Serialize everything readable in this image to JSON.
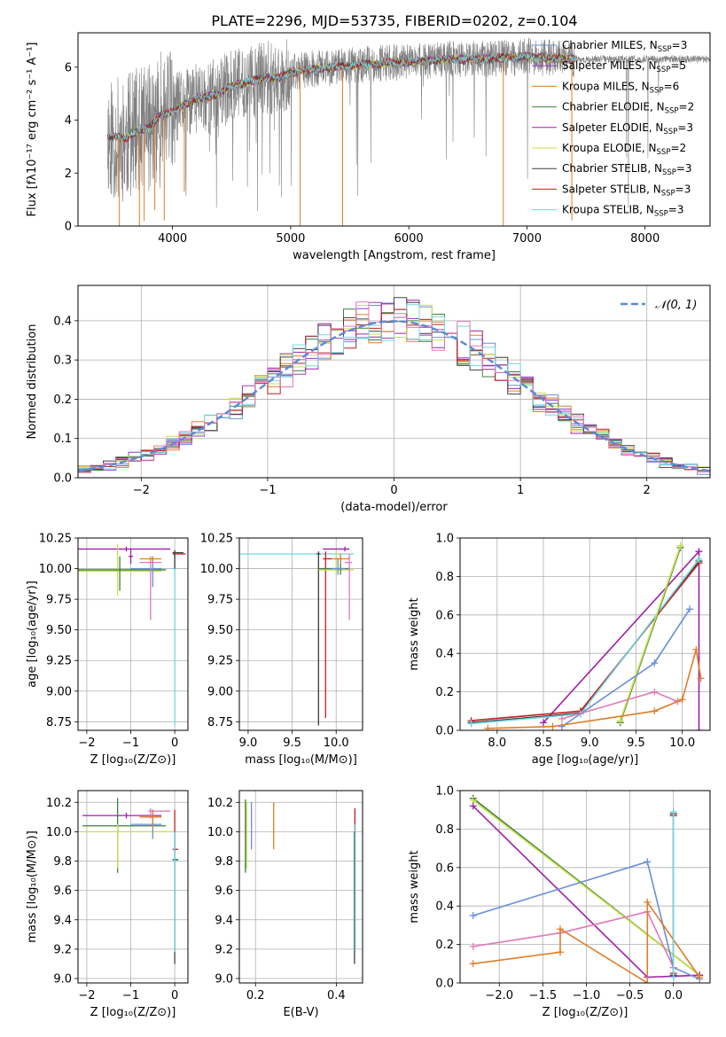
{
  "figure": {
    "title": "PLATE=2296, MJD=53735, FIBERID=0202, z=0.104"
  },
  "palette": {
    "Chabrier MILES": "#6a8ed8",
    "Salpeter MILES": "#9a3fc0",
    "Kroupa MILES": "#e07d2a",
    "Chabrier ELODIE": "#3f7f3f",
    "Salpeter ELODIE": "#a020a8",
    "Kroupa ELODIE": "#c8e04a",
    "Chabrier STELIB": "#404040",
    "Salpeter STELIB": "#c02020",
    "Kroupa STELIB": "#70d8e0",
    "pink": "#e07ab8",
    "observed": "#808080"
  },
  "chart_data": [
    {
      "id": "spectrum",
      "type": "line",
      "title": "PLATE=2296, MJD=53735, FIBERID=0202, z=0.104",
      "xlabel": "wavelength [Angstrom, rest frame]",
      "ylabel": "Flux [fλ10⁻¹⁷ erg cm⁻² s⁻¹ A⁻¹]",
      "xlim": [
        3200,
        8550
      ],
      "ylim": [
        0,
        7.3
      ],
      "xticks": [
        4000,
        5000,
        6000,
        7000,
        8000
      ],
      "yticks": [
        0,
        2,
        4,
        6
      ],
      "grid": false,
      "legend_position": "top-right",
      "legend": [
        {
          "label": "Chabrier MILES, N",
          "sub": "SSP",
          "tail": "=3",
          "series": "Chabrier MILES"
        },
        {
          "label": "Salpeter MILES, N",
          "sub": "SSP",
          "tail": "=5",
          "series": "Salpeter MILES"
        },
        {
          "label": "Kroupa MILES, N",
          "sub": "SSP",
          "tail": "=6",
          "series": "Kroupa MILES"
        },
        {
          "label": "Chabrier ELODIE, N",
          "sub": "SSP",
          "tail": "=2",
          "series": "Chabrier ELODIE"
        },
        {
          "label": "Salpeter ELODIE, N",
          "sub": "SSP",
          "tail": "=3",
          "series": "Salpeter ELODIE"
        },
        {
          "label": "Kroupa ELODIE, N",
          "sub": "SSP",
          "tail": "=2",
          "series": "Kroupa ELODIE"
        },
        {
          "label": "Chabrier STELIB, N",
          "sub": "SSP",
          "tail": "=3",
          "series": "Chabrier STELIB"
        },
        {
          "label": "Salpeter STELIB, N",
          "sub": "SSP",
          "tail": "=3",
          "series": "Salpeter STELIB"
        },
        {
          "label": "Kroupa STELIB, N",
          "sub": "SSP",
          "tail": "=3",
          "series": "Kroupa STELIB"
        }
      ],
      "observed_envelope": {
        "wavelength": [
          3450,
          3600,
          3700,
          3800,
          3900,
          4000,
          4100,
          4200,
          4300,
          4400,
          4500,
          4600,
          4700,
          4800,
          4900,
          5000,
          5200,
          5400,
          5600,
          5800,
          6000,
          6200,
          6400,
          6600,
          6800,
          7000,
          7200,
          7400
        ],
        "flux": [
          3.4,
          3.3,
          3.6,
          3.7,
          4.2,
          4.3,
          4.6,
          4.8,
          4.9,
          5.0,
          5.3,
          5.4,
          5.5,
          5.6,
          5.6,
          5.8,
          5.95,
          6.0,
          6.1,
          6.15,
          6.2,
          6.25,
          6.3,
          6.3,
          6.35,
          6.4,
          6.35,
          6.3
        ]
      },
      "models_shown_from": 3450,
      "models_shown_to": 7420,
      "spikes_down": [
        [
          3550,
          0
        ],
        [
          3720,
          0
        ],
        [
          3760,
          0.2
        ],
        [
          3850,
          0.6
        ],
        [
          3930,
          0.2
        ],
        [
          4100,
          1.3
        ],
        [
          5080,
          0
        ],
        [
          5440,
          0
        ],
        [
          6800,
          0
        ],
        [
          7380,
          0.2
        ]
      ]
    },
    {
      "id": "residuals",
      "type": "area",
      "xlabel": "(data-model)/error",
      "ylabel": "Normed distribution",
      "xlim": [
        -2.5,
        2.5
      ],
      "ylim": [
        0,
        0.49
      ],
      "xticks": [
        -2,
        -1,
        0,
        1,
        2
      ],
      "yticks": [
        0.0,
        0.1,
        0.2,
        0.3,
        0.4
      ],
      "grid": true,
      "legend_position": "top-right",
      "legend_label": "𝒩(0, 1)",
      "bin_width": 0.1,
      "noise_seed": 7
    },
    {
      "id": "age_vs_Z",
      "type": "scatter",
      "xlabel": "Z [log₁₀(Z/Z⊙)]",
      "ylabel": "age  [log₁₀(age/yr)]",
      "xlim": [
        -2.2,
        0.3
      ],
      "ylim": [
        8.68,
        10.25
      ],
      "xticks": [
        -2,
        -1,
        0
      ],
      "yticks": [
        8.75,
        9.0,
        9.25,
        9.5,
        9.75,
        10.0,
        10.25
      ],
      "grid": true,
      "crosses": [
        {
          "s": "Salpeter ELODIE",
          "x": -1.1,
          "xlo": -2.3,
          "xhi": -0.1,
          "y": 10.16,
          "ylo": 10.14,
          "yhi": 10.18
        },
        {
          "s": "Salpeter ELODIE",
          "x": -1.0,
          "xlo": -1.05,
          "xhi": -0.95,
          "y": 10.1,
          "ylo": 10.04,
          "yhi": 10.16
        },
        {
          "s": "Kroupa ELODIE",
          "x": -1.3,
          "xlo": -2.3,
          "xhi": -0.3,
          "y": 9.98,
          "ylo": 9.78,
          "yhi": 10.2
        },
        {
          "s": "Chabrier ELODIE",
          "x": -1.25,
          "xlo": -2.3,
          "xhi": -0.2,
          "y": 9.99,
          "ylo": 9.82,
          "yhi": 10.1
        },
        {
          "s": "Chabrier MILES",
          "x": -0.5,
          "xlo": -1.0,
          "xhi": -0.3,
          "y": 10.0,
          "ylo": 9.85,
          "yhi": 10.1
        },
        {
          "s": "pink",
          "x": -0.55,
          "xlo": -0.8,
          "xhi": -0.3,
          "y": 10.05,
          "ylo": 9.58,
          "yhi": 10.1
        },
        {
          "s": "Kroupa MILES",
          "x": -0.5,
          "xlo": -0.8,
          "xhi": -0.3,
          "y": 10.08,
          "ylo": 10.05,
          "yhi": 10.1
        },
        {
          "s": "Salpeter STELIB",
          "x": 0.0,
          "xlo": -0.05,
          "xhi": 0.25,
          "y": 10.12,
          "ylo": 10.08,
          "yhi": 10.14
        },
        {
          "s": "Kroupa STELIB",
          "x": 0.0,
          "xlo": -0.05,
          "xhi": 0.05,
          "y": 10.0,
          "ylo": 8.72,
          "yhi": 10.15
        },
        {
          "s": "Chabrier STELIB",
          "x": 0.0,
          "xlo": -0.05,
          "xhi": 0.2,
          "y": 10.13,
          "ylo": 10.0,
          "yhi": 10.15
        }
      ]
    },
    {
      "id": "age_vs_mass",
      "type": "scatter",
      "xlabel": "mass [log₁₀(M/M⊙)]",
      "ylabel": "",
      "xlim": [
        8.9,
        10.3
      ],
      "ylim": [
        8.68,
        10.25
      ],
      "xticks": [
        9.0,
        9.5,
        10.0
      ],
      "yticks": [
        8.75,
        9.0,
        9.25,
        9.5,
        9.75,
        10.0,
        10.25
      ],
      "grid": true,
      "crosses": [
        {
          "s": "Kroupa STELIB",
          "x": 9.8,
          "xlo": 8.9,
          "xhi": 10.2,
          "y": 10.12,
          "ylo": 8.72,
          "yhi": 10.14
        },
        {
          "s": "Chabrier STELIB",
          "x": 9.8,
          "xlo": 9.78,
          "xhi": 9.82,
          "y": 10.12,
          "ylo": 8.72,
          "yhi": 10.14
        },
        {
          "s": "Salpeter STELIB",
          "x": 9.88,
          "xlo": 9.85,
          "xhi": 9.95,
          "y": 10.08,
          "ylo": 8.78,
          "yhi": 10.14
        },
        {
          "s": "Salpeter ELODIE",
          "x": 10.1,
          "xlo": 9.85,
          "xhi": 10.15,
          "y": 10.16,
          "ylo": 10.14,
          "yhi": 10.18
        },
        {
          "s": "Kroupa ELODIE",
          "x": 10.0,
          "xlo": 9.8,
          "xhi": 10.2,
          "y": 9.99,
          "ylo": 9.95,
          "yhi": 10.15
        },
        {
          "s": "Chabrier ELODIE",
          "x": 10.05,
          "xlo": 9.8,
          "xhi": 10.15,
          "y": 10.0,
          "ylo": 9.95,
          "yhi": 10.1
        },
        {
          "s": "pink",
          "x": 10.15,
          "xlo": 10.1,
          "xhi": 10.18,
          "y": 10.05,
          "ylo": 9.58,
          "yhi": 10.12
        },
        {
          "s": "Kroupa MILES",
          "x": 10.05,
          "xlo": 9.95,
          "xhi": 10.15,
          "y": 10.08,
          "ylo": 10.04,
          "yhi": 10.12
        },
        {
          "s": "Chabrier MILES",
          "x": 10.02,
          "xlo": 9.95,
          "xhi": 10.1,
          "y": 10.0,
          "ylo": 9.95,
          "yhi": 10.08
        }
      ]
    },
    {
      "id": "mass_weight_vs_age",
      "type": "line",
      "xlabel": "age  [log₁₀(age/yr)]",
      "ylabel": "mass weight",
      "xlim": [
        7.6,
        10.3
      ],
      "ylim": [
        0,
        1.0
      ],
      "xticks": [
        8.0,
        8.5,
        9.0,
        9.5,
        10.0
      ],
      "yticks": [
        0.0,
        0.2,
        0.4,
        0.6,
        0.8,
        1.0
      ],
      "grid": true,
      "series": [
        {
          "s": "Salpeter ELODIE",
          "x": [
            8.5,
            10.18,
            10.18
          ],
          "y": [
            0.04,
            0.93,
            0.0
          ]
        },
        {
          "s": "Chabrier STELIB",
          "x": [
            7.72,
            8.9,
            10.18
          ],
          "y": [
            0.04,
            0.09,
            0.88
          ]
        },
        {
          "s": "Salpeter STELIB",
          "x": [
            7.72,
            8.9,
            10.18
          ],
          "y": [
            0.05,
            0.1,
            0.87
          ]
        },
        {
          "s": "Kroupa STELIB",
          "x": [
            7.72,
            8.9,
            10.18
          ],
          "y": [
            0.035,
            0.085,
            0.89
          ]
        },
        {
          "s": "Chabrier ELODIE",
          "x": [
            9.33,
            9.98
          ],
          "y": [
            0.04,
            0.95
          ]
        },
        {
          "s": "Kroupa ELODIE",
          "x": [
            9.33,
            9.98
          ],
          "y": [
            0.05,
            0.96
          ]
        },
        {
          "s": "Chabrier MILES",
          "x": [
            8.7,
            9.7,
            10.08
          ],
          "y": [
            0.02,
            0.35,
            0.63
          ]
        },
        {
          "s": "pink",
          "x": [
            8.7,
            9.7,
            9.95
          ],
          "y": [
            0.06,
            0.2,
            0.15
          ]
        },
        {
          "s": "Kroupa MILES",
          "x": [
            7.9,
            8.6,
            9.7,
            10.0,
            10.15,
            10.2
          ],
          "y": [
            0.01,
            0.02,
            0.1,
            0.16,
            0.42,
            0.27
          ]
        }
      ]
    },
    {
      "id": "mass_vs_Z",
      "type": "scatter",
      "xlabel": "Z [log₁₀(Z/Z⊙)]",
      "ylabel": "mass [log₁₀(M/M⊙)]",
      "xlim": [
        -2.2,
        0.3
      ],
      "ylim": [
        8.97,
        10.28
      ],
      "xticks": [
        -2,
        -1,
        0
      ],
      "yticks": [
        9.0,
        9.2,
        9.4,
        9.6,
        9.8,
        10.0,
        10.2
      ],
      "grid": true,
      "crosses": [
        {
          "s": "Salpeter ELODIE",
          "x": -1.1,
          "xlo": -2.1,
          "xhi": -0.3,
          "y": 10.11,
          "ylo": 10.09,
          "yhi": 10.13
        },
        {
          "s": "Chabrier ELODIE",
          "x": -1.3,
          "xlo": -2.1,
          "xhi": -0.2,
          "y": 10.04,
          "ylo": 9.72,
          "yhi": 10.23
        },
        {
          "s": "Kroupa ELODIE",
          "x": -1.3,
          "xlo": -2.1,
          "xhi": -0.1,
          "y": 10.0,
          "ylo": 9.75,
          "yhi": 10.05
        },
        {
          "s": "Chabrier MILES",
          "x": -0.5,
          "xlo": -1.0,
          "xhi": -0.3,
          "y": 10.05,
          "ylo": 9.95,
          "yhi": 10.15
        },
        {
          "s": "pink",
          "x": -0.55,
          "xlo": -0.6,
          "xhi": -0.1,
          "y": 10.14,
          "ylo": 10.09,
          "yhi": 10.16
        },
        {
          "s": "Kroupa MILES",
          "x": -0.5,
          "xlo": -0.8,
          "xhi": -0.3,
          "y": 10.1,
          "ylo": 10.03,
          "yhi": 10.15
        },
        {
          "s": "Salpeter STELIB",
          "x": 0.0,
          "xlo": -0.05,
          "xhi": 0.08,
          "y": 9.88,
          "ylo": 9.86,
          "yhi": 10.15
        },
        {
          "s": "Chabrier STELIB",
          "x": 0.0,
          "xlo": -0.05,
          "xhi": 0.08,
          "y": 9.81,
          "ylo": 9.1,
          "yhi": 10.0
        },
        {
          "s": "Kroupa STELIB",
          "x": 0.0,
          "xlo": -0.05,
          "xhi": 0.08,
          "y": 9.8,
          "ylo": 9.18,
          "yhi": 10.0
        }
      ]
    },
    {
      "id": "mass_vs_ebv",
      "type": "scatter",
      "xlabel": "E(B-V)",
      "ylabel": "",
      "xlim": [
        0.16,
        0.465
      ],
      "ylim": [
        8.97,
        10.28
      ],
      "xticks": [
        0.2,
        0.4
      ],
      "yticks": [
        9.0,
        9.2,
        9.4,
        9.6,
        9.8,
        10.0,
        10.2
      ],
      "grid": true,
      "crosses": [
        {
          "s": "Chabrier ELODIE",
          "x": 0.175,
          "xlo": 0.175,
          "xhi": 0.175,
          "y": 10.05,
          "ylo": 9.72,
          "yhi": 10.22
        },
        {
          "s": "Kroupa ELODIE",
          "x": 0.178,
          "xlo": 0.178,
          "xhi": 0.178,
          "y": 10.0,
          "ylo": 9.75,
          "yhi": 10.2
        },
        {
          "s": "Chabrier MILES",
          "x": 0.19,
          "xlo": 0.19,
          "xhi": 0.19,
          "y": 10.05,
          "ylo": 9.88,
          "yhi": 10.2
        },
        {
          "s": "Kroupa MILES",
          "x": 0.245,
          "xlo": 0.245,
          "xhi": 0.245,
          "y": 10.05,
          "ylo": 9.88,
          "yhi": 10.2
        },
        {
          "s": "Salpeter STELIB",
          "x": 0.446,
          "xlo": 0.446,
          "xhi": 0.446,
          "y": 10.0,
          "ylo": 9.88,
          "yhi": 10.16
        },
        {
          "s": "Chabrier STELIB",
          "x": 0.445,
          "xlo": 0.445,
          "xhi": 0.445,
          "y": 9.8,
          "ylo": 9.1,
          "yhi": 10.0
        },
        {
          "s": "Kroupa STELIB",
          "x": 0.447,
          "xlo": 0.447,
          "xhi": 0.447,
          "y": 9.8,
          "ylo": 9.18,
          "yhi": 10.05
        }
      ]
    },
    {
      "id": "mass_weight_vs_Z",
      "type": "line",
      "xlabel": "Z [log₁₀(Z/Z⊙)]",
      "ylabel": "mass weight",
      "xlim": [
        -2.45,
        0.42
      ],
      "ylim": [
        0,
        1.0
      ],
      "xticks": [
        -2.0,
        -1.5,
        -1.0,
        -0.5,
        0.0
      ],
      "yticks": [
        0.0,
        0.2,
        0.4,
        0.6,
        0.8,
        1.0
      ],
      "grid": true,
      "series": [
        {
          "s": "Chabrier ELODIE",
          "x": [
            -2.3,
            0.3
          ],
          "y": [
            0.96,
            0.04
          ]
        },
        {
          "s": "Kroupa ELODIE",
          "x": [
            -2.3,
            0.3
          ],
          "y": [
            0.95,
            0.04
          ]
        },
        {
          "s": "Salpeter ELODIE",
          "x": [
            -2.3,
            -0.3,
            0.3
          ],
          "y": [
            0.92,
            0.03,
            0.04
          ]
        },
        {
          "s": "Chabrier MILES",
          "x": [
            -2.3,
            -0.3,
            0.0,
            0.3
          ],
          "y": [
            0.35,
            0.63,
            0.08,
            0.02
          ]
        },
        {
          "s": "pink",
          "x": [
            -2.3,
            -1.3,
            -0.3,
            0.0
          ],
          "y": [
            0.19,
            0.26,
            0.37,
            0.08
          ]
        },
        {
          "s": "Kroupa MILES",
          "x": [
            -2.3,
            -1.3,
            -1.3,
            -0.3,
            -0.3,
            0.3
          ],
          "y": [
            0.1,
            0.16,
            0.28,
            0.0,
            0.42,
            0.03
          ]
        },
        {
          "s": "Chabrier STELIB",
          "x": [
            0.0,
            0.0
          ],
          "y": [
            0.04,
            0.88
          ]
        },
        {
          "s": "Salpeter STELIB",
          "x": [
            0.0,
            0.0
          ],
          "y": [
            0.05,
            0.87
          ]
        },
        {
          "s": "Kroupa STELIB",
          "x": [
            0.0,
            0.0
          ],
          "y": [
            0.03,
            0.89
          ]
        }
      ]
    }
  ]
}
